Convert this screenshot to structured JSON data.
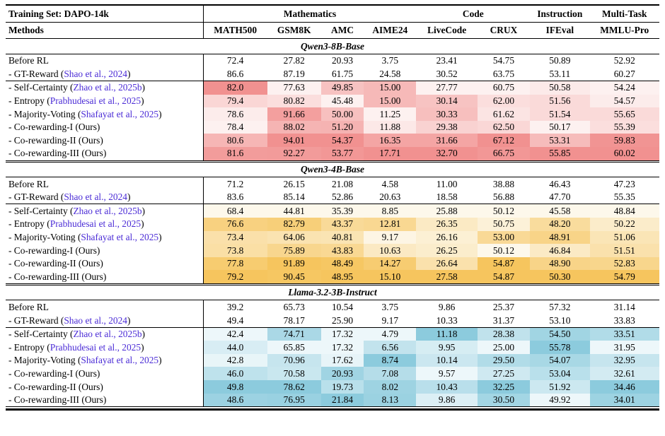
{
  "colors": {
    "citation": "#4b2cd6",
    "text": "#000000",
    "section_heat": [
      {
        "min": "#fdf1f0",
        "max": "#f19190"
      },
      {
        "min": "#fdf8eb",
        "max": "#f6c55e"
      },
      {
        "min": "#edf7fa",
        "max": "#8ccbdd"
      }
    ]
  },
  "table": {
    "training_set_label": "Training Set: DAPO-14k",
    "methods_header": "Methods",
    "groups": [
      {
        "label": "Mathematics",
        "span": 4
      },
      {
        "label": "Code",
        "span": 2
      },
      {
        "label": "Instruction",
        "span": 1
      },
      {
        "label": "Multi-Task",
        "span": 1
      }
    ],
    "columns": [
      "MATH500",
      "GSM8K",
      "AMC",
      "AIME24",
      "LiveCode",
      "CRUX",
      "IFEval",
      "MMLU-Pro"
    ],
    "sections": [
      {
        "model": "Qwen3-8B-Base",
        "baseline_rows": [
          {
            "prefix": "Before RL",
            "citation": "",
            "suffix": "",
            "values": [
              "72.4",
              "27.82",
              "20.93",
              "3.75",
              "23.41",
              "54.75",
              "50.89",
              "52.92"
            ]
          },
          {
            "prefix": "- GT-Reward (",
            "citation": "Shao et al., 2024",
            "suffix": ")",
            "values": [
              "86.6",
              "87.19",
              "61.75",
              "24.58",
              "30.52",
              "63.75",
              "53.11",
              "60.27"
            ]
          }
        ],
        "method_rows": [
          {
            "prefix": "- Self-Certainty (",
            "citation": "Zhao et al., 2025b",
            "suffix": ")",
            "values": [
              "82.0",
              "77.63",
              "49.85",
              "15.00",
              "27.77",
              "60.75",
              "50.58",
              "54.24"
            ]
          },
          {
            "prefix": "- Entropy (",
            "citation": "Prabhudesai et al., 2025",
            "suffix": ")",
            "values": [
              "79.4",
              "80.82",
              "45.48",
              "15.00",
              "30.14",
              "62.00",
              "51.56",
              "54.57"
            ]
          },
          {
            "prefix": "- Majority-Voting (",
            "citation": "Shafayat et al., 2025",
            "suffix": ")",
            "values": [
              "78.6",
              "91.66",
              "50.00",
              "11.25",
              "30.33",
              "61.62",
              "51.54",
              "55.65"
            ]
          },
          {
            "prefix": "- Co-rewarding-I (Ours)",
            "citation": "",
            "suffix": "",
            "values": [
              "78.4",
              "88.02",
              "51.20",
              "11.88",
              "29.38",
              "62.50",
              "50.17",
              "55.39"
            ]
          },
          {
            "prefix": "- Co-rewarding-II (Ours)",
            "citation": "",
            "suffix": "",
            "values": [
              "80.6",
              "94.01",
              "54.37",
              "16.35",
              "31.66",
              "67.12",
              "53.31",
              "59.83"
            ]
          },
          {
            "prefix": "- Co-rewarding-III (Ours)",
            "citation": "",
            "suffix": "",
            "values": [
              "81.6",
              "92.27",
              "53.77",
              "17.71",
              "32.70",
              "66.75",
              "55.85",
              "60.02"
            ]
          }
        ]
      },
      {
        "model": "Qwen3-4B-Base",
        "baseline_rows": [
          {
            "prefix": "Before RL",
            "citation": "",
            "suffix": "",
            "values": [
              "71.2",
              "26.15",
              "21.08",
              "4.58",
              "11.00",
              "38.88",
              "46.43",
              "47.23"
            ]
          },
          {
            "prefix": "- GT-Reward (",
            "citation": "Shao et al., 2024",
            "suffix": ")",
            "values": [
              "83.6",
              "85.14",
              "52.86",
              "20.63",
              "18.58",
              "56.88",
              "47.70",
              "55.35"
            ]
          }
        ],
        "method_rows": [
          {
            "prefix": "- Self-Certainty (",
            "citation": "Zhao et al., 2025b",
            "suffix": ")",
            "values": [
              "68.4",
              "44.81",
              "35.39",
              "8.85",
              "25.88",
              "50.12",
              "45.58",
              "48.84"
            ]
          },
          {
            "prefix": "- Entropy (",
            "citation": "Prabhudesai et al., 2025",
            "suffix": ")",
            "values": [
              "76.6",
              "82.79",
              "43.37",
              "12.81",
              "26.35",
              "50.75",
              "48.20",
              "50.22"
            ]
          },
          {
            "prefix": "- Majority-Voting (",
            "citation": "Shafayat et al., 2025",
            "suffix": ")",
            "values": [
              "73.4",
              "64.06",
              "40.81",
              "9.17",
              "26.16",
              "53.00",
              "48.91",
              "51.06"
            ]
          },
          {
            "prefix": "- Co-rewarding-I (Ours)",
            "citation": "",
            "suffix": "",
            "values": [
              "73.8",
              "75.89",
              "43.83",
              "10.63",
              "26.25",
              "50.12",
              "46.84",
              "51.51"
            ]
          },
          {
            "prefix": "- Co-rewarding-II (Ours)",
            "citation": "",
            "suffix": "",
            "values": [
              "77.8",
              "91.89",
              "48.49",
              "14.27",
              "26.64",
              "54.87",
              "48.90",
              "52.83"
            ]
          },
          {
            "prefix": "- Co-rewarding-III (Ours)",
            "citation": "",
            "suffix": "",
            "values": [
              "79.2",
              "90.45",
              "48.95",
              "15.10",
              "27.58",
              "54.87",
              "50.30",
              "54.79"
            ]
          }
        ]
      },
      {
        "model": "Llama-3.2-3B-Instruct",
        "baseline_rows": [
          {
            "prefix": "Before RL",
            "citation": "",
            "suffix": "",
            "values": [
              "39.2",
              "65.73",
              "10.54",
              "3.75",
              "9.86",
              "25.37",
              "57.32",
              "31.14"
            ]
          },
          {
            "prefix": "- GT-Reward (",
            "citation": "Shao et al., 2024",
            "suffix": ")",
            "values": [
              "49.4",
              "78.17",
              "25.90",
              "9.17",
              "10.33",
              "31.37",
              "53.10",
              "33.83"
            ]
          }
        ],
        "method_rows": [
          {
            "prefix": "- Self-Certainty (",
            "citation": "Zhao et al., 2025b",
            "suffix": ")",
            "values": [
              "42.4",
              "74.71",
              "17.32",
              "4.79",
              "11.18",
              "28.38",
              "54.50",
              "33.51"
            ]
          },
          {
            "prefix": "- Entropy (",
            "citation": "Prabhudesai et al., 2025",
            "suffix": ")",
            "values": [
              "44.0",
              "65.85",
              "17.32",
              "6.56",
              "9.95",
              "25.00",
              "55.78",
              "31.95"
            ]
          },
          {
            "prefix": "- Majority-Voting (",
            "citation": "Shafayat et al., 2025",
            "suffix": ")",
            "values": [
              "42.8",
              "70.96",
              "17.62",
              "8.74",
              "10.14",
              "29.50",
              "54.07",
              "32.95"
            ]
          },
          {
            "prefix": "- Co-rewarding-I (Ours)",
            "citation": "",
            "suffix": "",
            "values": [
              "46.0",
              "70.58",
              "20.93",
              "7.08",
              "9.57",
              "27.25",
              "53.04",
              "32.61"
            ]
          },
          {
            "prefix": "- Co-rewarding-II (Ours)",
            "citation": "",
            "suffix": "",
            "values": [
              "49.8",
              "78.62",
              "19.73",
              "8.02",
              "10.43",
              "32.25",
              "51.92",
              "34.46"
            ]
          },
          {
            "prefix": "- Co-rewarding-III (Ours)",
            "citation": "",
            "suffix": "",
            "values": [
              "48.6",
              "76.95",
              "21.84",
              "8.13",
              "9.86",
              "30.50",
              "49.92",
              "34.01"
            ]
          }
        ]
      }
    ]
  }
}
